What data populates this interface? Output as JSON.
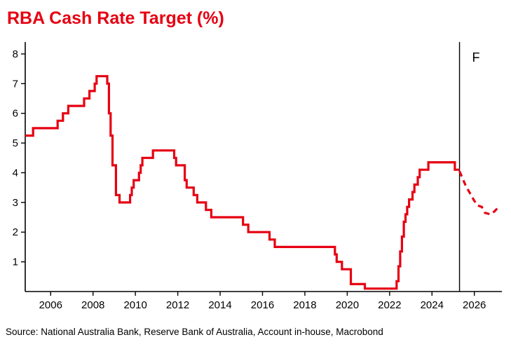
{
  "title": "RBA Cash Rate Target (%)",
  "source": "Source: National Australia Bank, Reserve Bank of Australia, Account in-house, Macrobond",
  "colors": {
    "accent": "#e60012",
    "axis": "#000000",
    "text": "#000000"
  },
  "chart_data": {
    "type": "line",
    "title": "RBA Cash Rate Target (%)",
    "xlabel": "",
    "ylabel": "",
    "xlim": [
      2004.8,
      2027.3
    ],
    "ylim": [
      0,
      8.4
    ],
    "x_ticks": [
      2006,
      2008,
      2010,
      2012,
      2014,
      2016,
      2018,
      2020,
      2022,
      2024,
      2026
    ],
    "y_ticks": [
      1,
      2,
      3,
      4,
      5,
      6,
      7,
      8
    ],
    "grid": false,
    "legend": "none",
    "forecast_divider_x": 2025.3,
    "forecast_label": "F",
    "series": [
      {
        "name": "RBA cash rate (history)",
        "style": "solid-step",
        "points": [
          [
            2004.8,
            5.25
          ],
          [
            2005.17,
            5.5
          ],
          [
            2006.33,
            5.75
          ],
          [
            2006.58,
            6.0
          ],
          [
            2006.83,
            6.25
          ],
          [
            2007.58,
            6.5
          ],
          [
            2007.83,
            6.75
          ],
          [
            2008.08,
            7.0
          ],
          [
            2008.17,
            7.25
          ],
          [
            2008.67,
            7.0
          ],
          [
            2008.75,
            6.0
          ],
          [
            2008.83,
            5.25
          ],
          [
            2008.92,
            4.25
          ],
          [
            2009.08,
            3.25
          ],
          [
            2009.25,
            3.0
          ],
          [
            2009.75,
            3.25
          ],
          [
            2009.83,
            3.5
          ],
          [
            2009.92,
            3.75
          ],
          [
            2010.17,
            4.0
          ],
          [
            2010.25,
            4.25
          ],
          [
            2010.33,
            4.5
          ],
          [
            2010.83,
            4.75
          ],
          [
            2011.83,
            4.5
          ],
          [
            2011.92,
            4.25
          ],
          [
            2012.33,
            3.75
          ],
          [
            2012.42,
            3.5
          ],
          [
            2012.75,
            3.25
          ],
          [
            2012.92,
            3.0
          ],
          [
            2013.33,
            2.75
          ],
          [
            2013.58,
            2.5
          ],
          [
            2015.08,
            2.25
          ],
          [
            2015.33,
            2.0
          ],
          [
            2016.33,
            1.75
          ],
          [
            2016.58,
            1.5
          ],
          [
            2019.42,
            1.25
          ],
          [
            2019.5,
            1.0
          ],
          [
            2019.75,
            0.75
          ],
          [
            2020.17,
            0.25
          ],
          [
            2020.83,
            0.1
          ],
          [
            2022.33,
            0.35
          ],
          [
            2022.42,
            0.85
          ],
          [
            2022.5,
            1.35
          ],
          [
            2022.58,
            1.85
          ],
          [
            2022.67,
            2.35
          ],
          [
            2022.75,
            2.6
          ],
          [
            2022.83,
            2.85
          ],
          [
            2022.92,
            3.1
          ],
          [
            2023.08,
            3.35
          ],
          [
            2023.17,
            3.6
          ],
          [
            2023.33,
            3.85
          ],
          [
            2023.42,
            4.1
          ],
          [
            2023.83,
            4.35
          ],
          [
            2025.08,
            4.1
          ],
          [
            2025.3,
            4.1
          ]
        ]
      },
      {
        "name": "RBA cash rate (forecast)",
        "style": "dashed",
        "points": [
          [
            2025.3,
            4.05
          ],
          [
            2025.45,
            3.8
          ],
          [
            2025.6,
            3.55
          ],
          [
            2025.8,
            3.3
          ],
          [
            2026.0,
            3.05
          ],
          [
            2026.15,
            2.9
          ],
          [
            2026.35,
            2.85
          ],
          [
            2026.5,
            2.65
          ],
          [
            2026.75,
            2.6
          ],
          [
            2026.95,
            2.7
          ],
          [
            2027.15,
            2.85
          ]
        ]
      }
    ]
  }
}
